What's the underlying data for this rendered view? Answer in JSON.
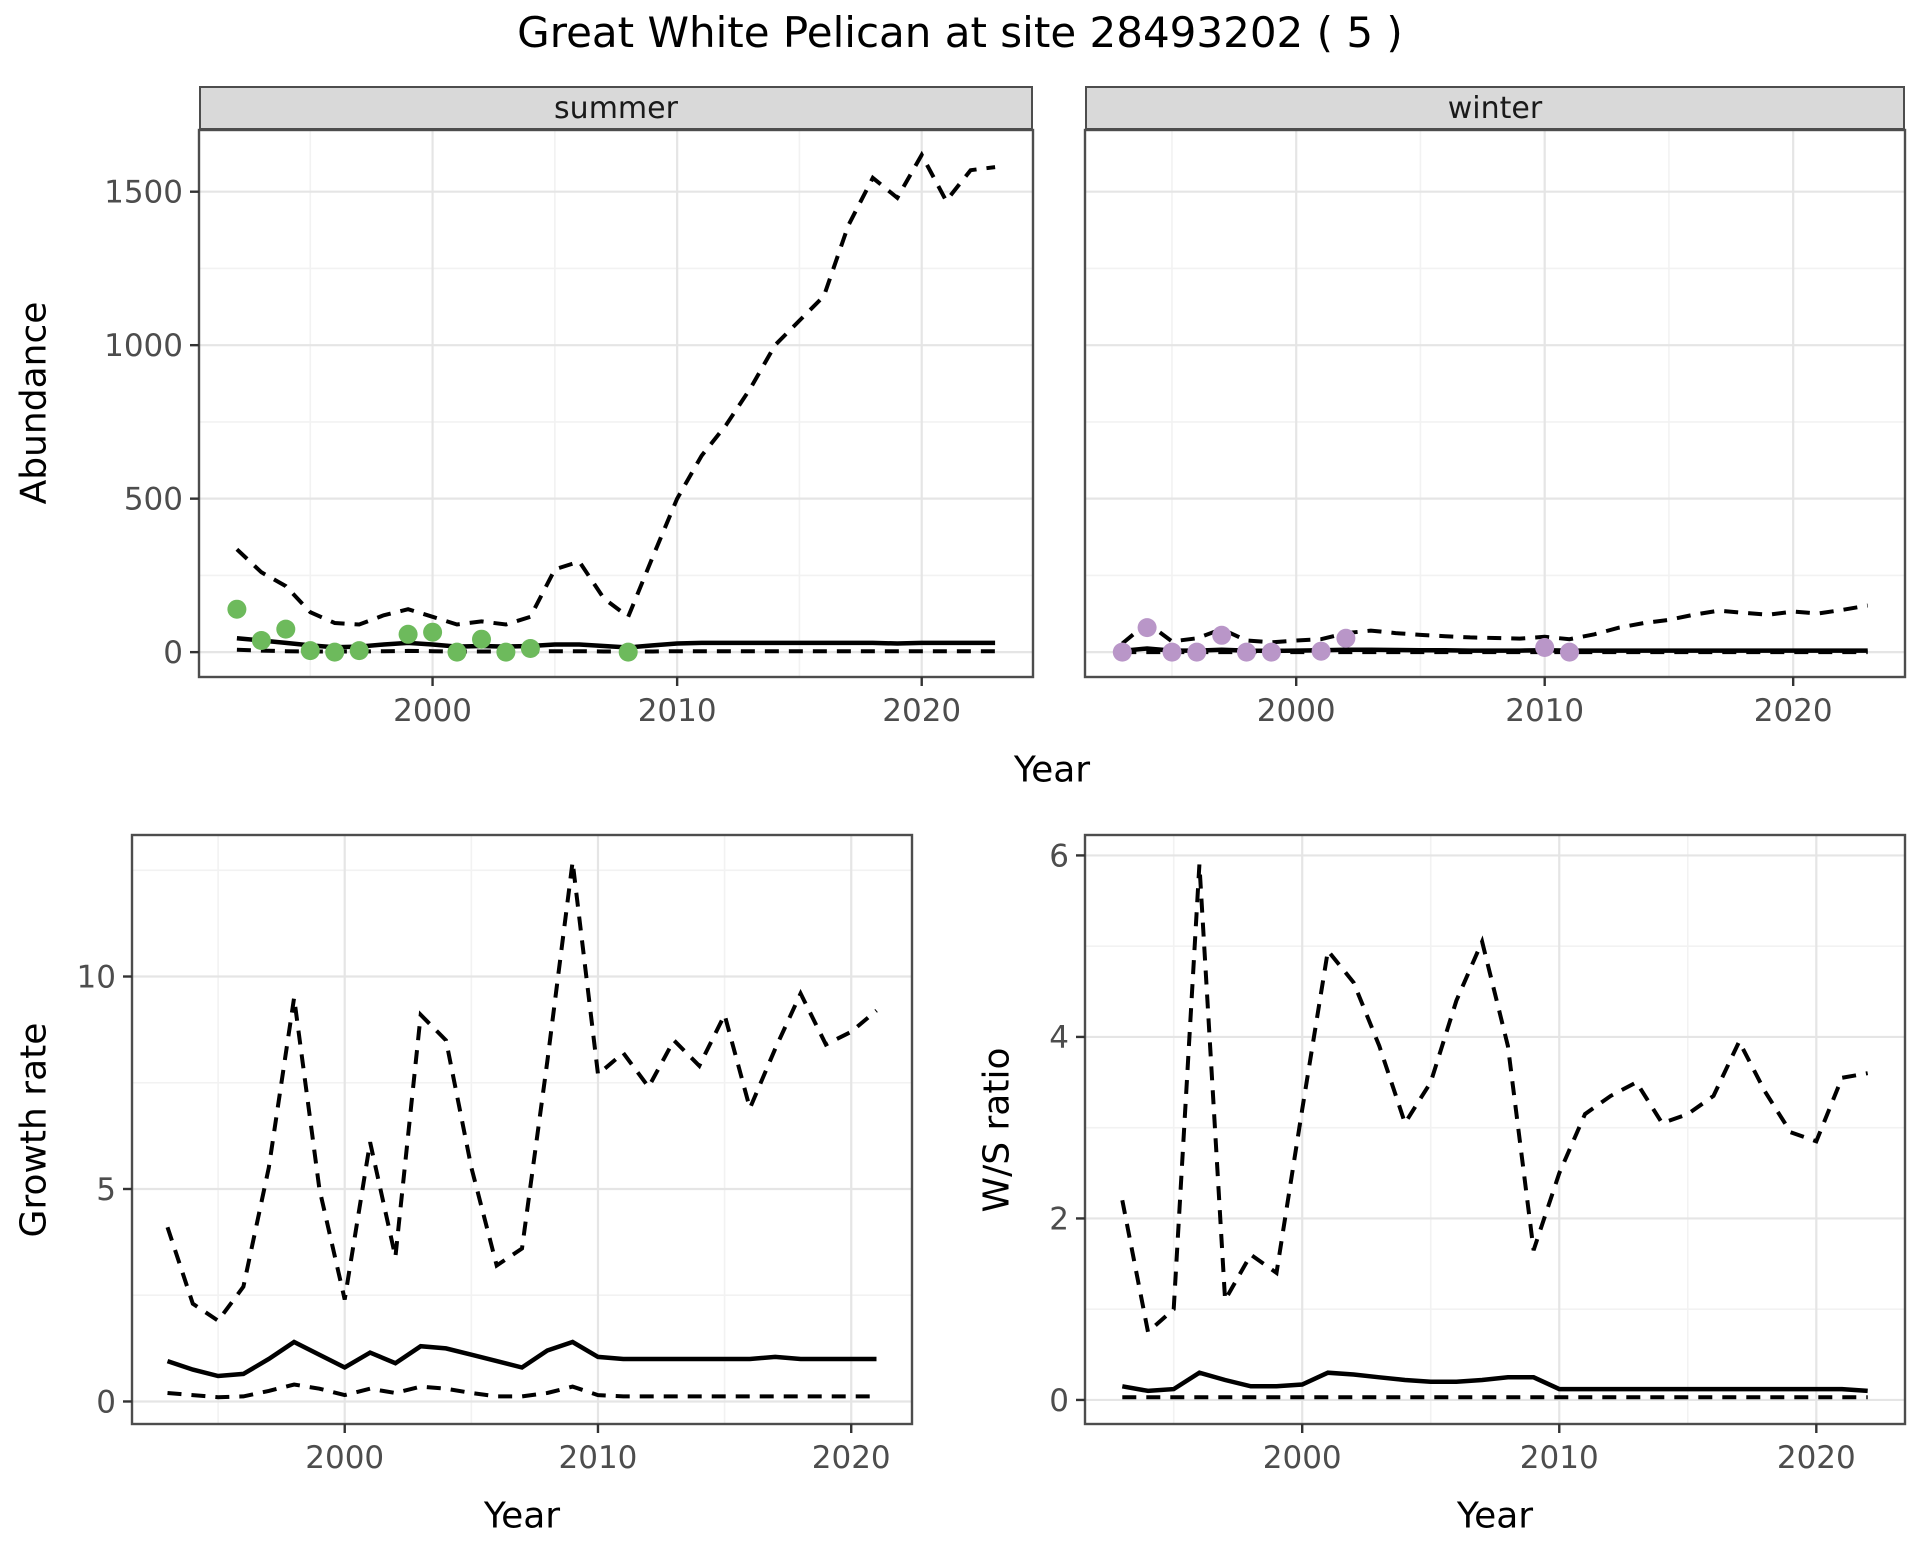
{
  "title": "Great White Pelican at site 28493202 ( 5 )",
  "facets": [
    {
      "label": "summer"
    },
    {
      "label": "winter"
    }
  ],
  "axes": {
    "abundance_label": "Abundance",
    "growth_label": "Growth rate",
    "ws_label": "W/S ratio",
    "year_label": "Year"
  },
  "colors": {
    "summer_point": "#6dba5c",
    "winter_point": "#b996c8",
    "line": "#000000",
    "strip_bg": "#d9d9d9",
    "panel_border": "#4d4d4d",
    "grid_major": "#e5e5e5",
    "grid_minor": "#f2f2f2",
    "tick_text": "#4d4d4d",
    "background": "#ffffff"
  },
  "chart_data": [
    {
      "id": "abundance_summer",
      "type": "line",
      "facet": "summer",
      "title": "",
      "xlabel": "Year",
      "ylabel": "Abundance",
      "xlim": [
        1990.45,
        2024.55
      ],
      "ylim": [
        -81,
        1701
      ],
      "x_ticks": [
        2000,
        2010,
        2020
      ],
      "x_minor": [
        1995,
        2005,
        2015
      ],
      "y_ticks": [
        0,
        500,
        1000,
        1500
      ],
      "y_minor": [
        250,
        750,
        1250
      ],
      "grid": true,
      "legend": "none",
      "series": [
        {
          "name": "upper_ci",
          "style": "dashed",
          "x": [
            1992,
            1993,
            1994,
            1995,
            1996,
            1997,
            1998,
            1999,
            2000,
            2001,
            2002,
            2003,
            2004,
            2005,
            2006,
            2007,
            2008,
            2009,
            2010,
            2011,
            2012,
            2013,
            2014,
            2015,
            2016,
            2017,
            2018,
            2019,
            2020,
            2021,
            2022,
            2023
          ],
          "y": [
            335,
            260,
            215,
            130,
            95,
            90,
            120,
            140,
            115,
            90,
            100,
            90,
            115,
            270,
            295,
            175,
            115,
            310,
            500,
            640,
            740,
            860,
            1000,
            1080,
            1160,
            1390,
            1545,
            1480,
            1620,
            1470,
            1570,
            1580
          ]
        },
        {
          "name": "median",
          "style": "solid",
          "x": [
            1992,
            1993,
            1994,
            1995,
            1996,
            1997,
            1998,
            1999,
            2000,
            2001,
            2002,
            2003,
            2004,
            2005,
            2006,
            2007,
            2008,
            2009,
            2010,
            2011,
            2012,
            2013,
            2014,
            2015,
            2016,
            2017,
            2018,
            2019,
            2020,
            2021,
            2022,
            2023
          ],
          "y": [
            45,
            38,
            30,
            22,
            16,
            18,
            25,
            30,
            25,
            18,
            20,
            18,
            20,
            25,
            25,
            20,
            15,
            22,
            28,
            30,
            30,
            30,
            30,
            30,
            30,
            30,
            30,
            28,
            30,
            30,
            30,
            30
          ]
        },
        {
          "name": "lower_ci",
          "style": "dashed",
          "x": [
            1992,
            1993,
            1994,
            1995,
            1996,
            1997,
            1998,
            1999,
            2000,
            2001,
            2002,
            2003,
            2004,
            2005,
            2006,
            2007,
            2008,
            2009,
            2010,
            2011,
            2012,
            2013,
            2014,
            2015,
            2016,
            2017,
            2018,
            2019,
            2020,
            2021,
            2022,
            2023
          ],
          "y": [
            8,
            5,
            3,
            2,
            2,
            2,
            3,
            4,
            3,
            2,
            2,
            2,
            2,
            3,
            3,
            2,
            2,
            2,
            3,
            3,
            3,
            3,
            3,
            3,
            3,
            3,
            3,
            3,
            3,
            3,
            3,
            3
          ]
        }
      ],
      "points": {
        "name": "observed_counts",
        "color": "#6dba5c",
        "x": [
          1992,
          1993,
          1994,
          1995,
          1996,
          1997,
          1999,
          2000,
          2001,
          2002,
          2003,
          2004,
          2008
        ],
        "y": [
          140,
          38,
          75,
          5,
          0,
          5,
          58,
          65,
          0,
          42,
          0,
          12,
          0
        ]
      }
    },
    {
      "id": "abundance_winter",
      "type": "line",
      "facet": "winter",
      "title": "",
      "xlabel": "Year",
      "ylabel": "Abundance",
      "xlim": [
        1991.5,
        2024.5
      ],
      "ylim": [
        -81,
        1701
      ],
      "x_ticks": [
        2000,
        2010,
        2020
      ],
      "x_minor": [
        1995,
        2005,
        2015
      ],
      "y_ticks": [
        0,
        500,
        1000,
        1500
      ],
      "y_minor": [
        250,
        750,
        1250
      ],
      "grid": true,
      "legend": "none",
      "series": [
        {
          "name": "upper_ci",
          "style": "dashed",
          "x": [
            1993,
            1994,
            1995,
            1996,
            1997,
            1998,
            1999,
            2000,
            2001,
            2002,
            2003,
            2004,
            2005,
            2006,
            2007,
            2008,
            2009,
            2010,
            2011,
            2012,
            2013,
            2014,
            2015,
            2016,
            2017,
            2018,
            2019,
            2020,
            2021,
            2022,
            2023
          ],
          "y": [
            28,
            95,
            35,
            45,
            75,
            38,
            32,
            38,
            42,
            62,
            70,
            62,
            56,
            52,
            48,
            46,
            44,
            50,
            42,
            58,
            80,
            95,
            105,
            122,
            135,
            128,
            122,
            132,
            126,
            138,
            152
          ]
        },
        {
          "name": "median",
          "style": "solid",
          "x": [
            1993,
            1994,
            1995,
            1996,
            1997,
            1998,
            1999,
            2000,
            2001,
            2002,
            2003,
            2004,
            2005,
            2006,
            2007,
            2008,
            2009,
            2010,
            2011,
            2012,
            2013,
            2014,
            2015,
            2016,
            2017,
            2018,
            2019,
            2020,
            2021,
            2022,
            2023
          ],
          "y": [
            4,
            12,
            5,
            5,
            8,
            5,
            4,
            5,
            6,
            8,
            8,
            7,
            6,
            6,
            5,
            5,
            5,
            6,
            5,
            5,
            5,
            5,
            5,
            5,
            5,
            5,
            5,
            5,
            5,
            5,
            5
          ]
        },
        {
          "name": "lower_ci",
          "style": "dashed",
          "x": [
            1993,
            1994,
            1995,
            1996,
            1997,
            1998,
            1999,
            2000,
            2001,
            2002,
            2003,
            2004,
            2005,
            2006,
            2007,
            2008,
            2009,
            2010,
            2011,
            2012,
            2013,
            2014,
            2015,
            2016,
            2017,
            2018,
            2019,
            2020,
            2021,
            2022,
            2023
          ],
          "y": [
            0,
            0,
            0,
            0,
            0,
            0,
            0,
            0,
            0,
            0,
            0,
            0,
            0,
            0,
            0,
            0,
            0,
            0,
            0,
            0,
            0,
            0,
            0,
            0,
            0,
            0,
            0,
            0,
            0,
            0,
            0
          ]
        }
      ],
      "points": {
        "name": "observed_counts",
        "color": "#b996c8",
        "x": [
          1993,
          1994,
          1995,
          1996,
          1997,
          1998,
          1999,
          2001,
          2002,
          2010,
          2011
        ],
        "y": [
          0,
          80,
          0,
          0,
          55,
          0,
          0,
          3,
          45,
          15,
          0
        ]
      }
    },
    {
      "id": "growth_rate",
      "type": "line",
      "facet": "",
      "title": "",
      "xlabel": "Year",
      "ylabel": "Growth rate",
      "xlim": [
        1991.6,
        2022.4
      ],
      "ylim": [
        -0.53,
        13.33
      ],
      "x_ticks": [
        2000,
        2010,
        2020
      ],
      "x_minor": [
        1995,
        2005,
        2015
      ],
      "y_ticks": [
        0,
        5,
        10
      ],
      "y_minor": [
        2.5,
        7.5,
        12.5
      ],
      "grid": true,
      "legend": "none",
      "series": [
        {
          "name": "upper_ci",
          "style": "dashed",
          "x": [
            1993,
            1994,
            1995,
            1996,
            1997,
            1998,
            1999,
            2000,
            2001,
            2002,
            2003,
            2004,
            2005,
            2006,
            2007,
            2008,
            2009,
            2010,
            2011,
            2012,
            2013,
            2014,
            2015,
            2016,
            2017,
            2018,
            2019,
            2020,
            2021
          ],
          "y": [
            4.1,
            2.3,
            1.9,
            2.7,
            5.5,
            9.5,
            5.0,
            2.4,
            6.1,
            3.4,
            9.1,
            8.5,
            5.5,
            3.2,
            3.6,
            8.0,
            12.7,
            7.7,
            8.2,
            7.4,
            8.5,
            7.9,
            9.1,
            6.9,
            8.3,
            9.6,
            8.4,
            8.7,
            9.2
          ]
        },
        {
          "name": "median",
          "style": "solid",
          "x": [
            1993,
            1994,
            1995,
            1996,
            1997,
            1998,
            1999,
            2000,
            2001,
            2002,
            2003,
            2004,
            2005,
            2006,
            2007,
            2008,
            2009,
            2010,
            2011,
            2012,
            2013,
            2014,
            2015,
            2016,
            2017,
            2018,
            2019,
            2020,
            2021
          ],
          "y": [
            0.95,
            0.75,
            0.6,
            0.65,
            1.0,
            1.4,
            1.1,
            0.8,
            1.15,
            0.9,
            1.3,
            1.25,
            1.1,
            0.95,
            0.8,
            1.2,
            1.4,
            1.05,
            1.0,
            1.0,
            1.0,
            1.0,
            1.0,
            1.0,
            1.05,
            1.0,
            1.0,
            1.0,
            1.0
          ]
        },
        {
          "name": "lower_ci",
          "style": "dashed",
          "x": [
            1993,
            1994,
            1995,
            1996,
            1997,
            1998,
            1999,
            2000,
            2001,
            2002,
            2003,
            2004,
            2005,
            2006,
            2007,
            2008,
            2009,
            2010,
            2011,
            2012,
            2013,
            2014,
            2015,
            2016,
            2017,
            2018,
            2019,
            2020,
            2021
          ],
          "y": [
            0.2,
            0.15,
            0.1,
            0.12,
            0.25,
            0.4,
            0.3,
            0.15,
            0.3,
            0.2,
            0.35,
            0.3,
            0.2,
            0.12,
            0.12,
            0.2,
            0.35,
            0.15,
            0.12,
            0.12,
            0.12,
            0.12,
            0.12,
            0.12,
            0.12,
            0.12,
            0.12,
            0.12,
            0.12
          ]
        }
      ],
      "points": null
    },
    {
      "id": "ws_ratio",
      "type": "line",
      "facet": "",
      "title": "",
      "xlabel": "Year",
      "ylabel": "W/S ratio",
      "xlim": [
        1991.55,
        2023.45
      ],
      "ylim": [
        -0.265,
        6.225
      ],
      "x_ticks": [
        2000,
        2010,
        2020
      ],
      "x_minor": [
        1995,
        2005,
        2015
      ],
      "y_ticks": [
        0,
        2,
        4,
        6
      ],
      "y_minor": [
        1,
        3,
        5
      ],
      "grid": true,
      "legend": "none",
      "series": [
        {
          "name": "upper_ci",
          "style": "dashed",
          "x": [
            1993,
            1994,
            1995,
            1996,
            1997,
            1998,
            1999,
            2000,
            2001,
            2002,
            2003,
            2004,
            2005,
            2006,
            2007,
            2008,
            2009,
            2010,
            2011,
            2012,
            2013,
            2014,
            2015,
            2016,
            2017,
            2018,
            2019,
            2020,
            2021,
            2022
          ],
          "y": [
            2.2,
            0.75,
            1.0,
            5.9,
            1.1,
            1.6,
            1.4,
            3.2,
            4.95,
            4.6,
            3.9,
            3.05,
            3.5,
            4.4,
            5.05,
            3.9,
            1.65,
            2.5,
            3.15,
            3.35,
            3.5,
            3.05,
            3.15,
            3.35,
            3.95,
            3.4,
            2.95,
            2.85,
            3.55,
            3.6
          ]
        },
        {
          "name": "median",
          "style": "solid",
          "x": [
            1993,
            1994,
            1995,
            1996,
            1997,
            1998,
            1999,
            2000,
            2001,
            2002,
            2003,
            2004,
            2005,
            2006,
            2007,
            2008,
            2009,
            2010,
            2011,
            2012,
            2013,
            2014,
            2015,
            2016,
            2017,
            2018,
            2019,
            2020,
            2021,
            2022
          ],
          "y": [
            0.15,
            0.1,
            0.12,
            0.3,
            0.22,
            0.15,
            0.15,
            0.17,
            0.3,
            0.28,
            0.25,
            0.22,
            0.2,
            0.2,
            0.22,
            0.25,
            0.25,
            0.12,
            0.12,
            0.12,
            0.12,
            0.12,
            0.12,
            0.12,
            0.12,
            0.12,
            0.12,
            0.12,
            0.12,
            0.1
          ]
        },
        {
          "name": "lower_ci",
          "style": "dashed",
          "x": [
            1993,
            1994,
            1995,
            1996,
            1997,
            1998,
            1999,
            2000,
            2001,
            2002,
            2003,
            2004,
            2005,
            2006,
            2007,
            2008,
            2009,
            2010,
            2011,
            2012,
            2013,
            2014,
            2015,
            2016,
            2017,
            2018,
            2019,
            2020,
            2021,
            2022
          ],
          "y": [
            0.03,
            0.03,
            0.03,
            0.03,
            0.03,
            0.03,
            0.03,
            0.03,
            0.03,
            0.03,
            0.03,
            0.03,
            0.03,
            0.03,
            0.03,
            0.03,
            0.03,
            0.03,
            0.03,
            0.03,
            0.03,
            0.03,
            0.03,
            0.03,
            0.03,
            0.03,
            0.03,
            0.03,
            0.03,
            0.03
          ]
        }
      ],
      "points": null
    }
  ]
}
